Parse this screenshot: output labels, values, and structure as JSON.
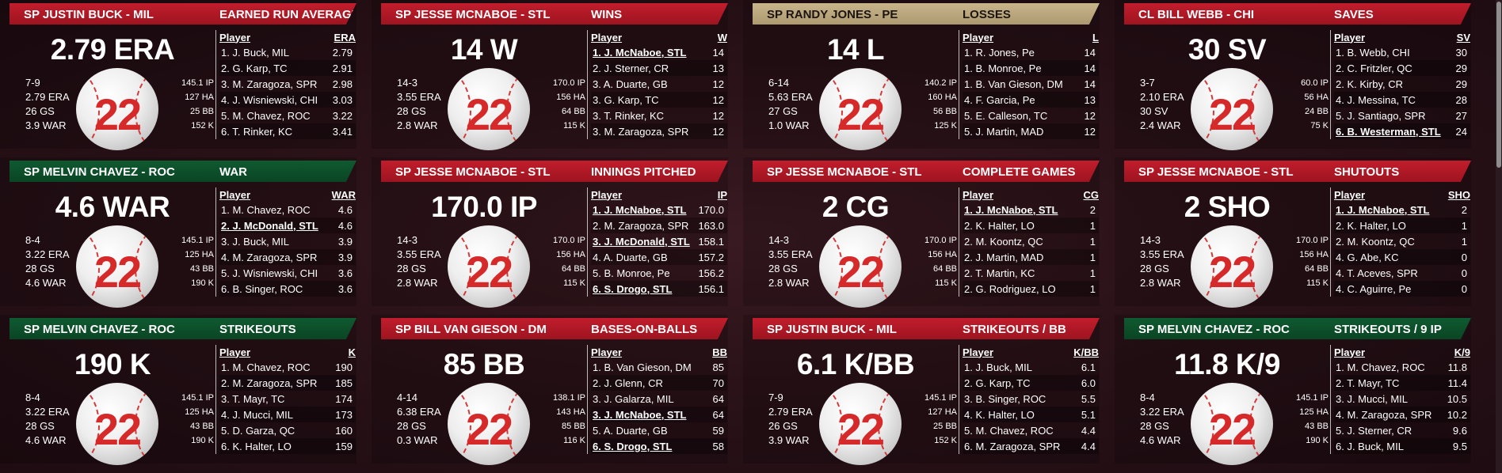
{
  "panels": [
    {
      "player": "SP JUSTIN BUCK - MIL",
      "stat": "EARNED RUN AVERAGE",
      "color": "red",
      "headline": "2.79 ERA",
      "left": [
        "7-9",
        "2.79 ERA",
        "26 GS",
        "3.9 WAR"
      ],
      "right": [
        "145.1 IP",
        "127 HA",
        "25 BB",
        "152 K"
      ],
      "col": "ERA",
      "rows": [
        [
          "1. J. Buck, MIL",
          "2.79"
        ],
        [
          "2. G. Karp, TC",
          "2.91"
        ],
        [
          "3. M. Zaragoza, SPR",
          "2.98"
        ],
        [
          "4. J. Wisniewski, CHI",
          "3.03"
        ],
        [
          "5. M. Chavez, ROC",
          "3.22"
        ],
        [
          "6. T. Rinker, KC",
          "3.41"
        ]
      ],
      "hl": []
    },
    {
      "player": "SP JESSE MCNABOE - STL",
      "stat": "WINS",
      "color": "red",
      "headline": "14 W",
      "left": [
        "14-3",
        "3.55 ERA",
        "28 GS",
        "2.8 WAR"
      ],
      "right": [
        "170.0 IP",
        "156 HA",
        "64 BB",
        "115 K"
      ],
      "col": "W",
      "rows": [
        [
          "1. J. McNaboe, STL",
          "14"
        ],
        [
          "2. J. Sterner, CR",
          "13"
        ],
        [
          "3. A. Duarte, GB",
          "12"
        ],
        [
          "3. G. Karp, TC",
          "12"
        ],
        [
          "3. T. Rinker, KC",
          "12"
        ],
        [
          "3. M. Zaragoza, SPR",
          "12"
        ]
      ],
      "hl": [
        0
      ]
    },
    {
      "player": "SP RANDY JONES - PE",
      "stat": "LOSSES",
      "color": "tan",
      "headline": "14 L",
      "left": [
        "6-14",
        "5.63 ERA",
        "27 GS",
        "1.0 WAR"
      ],
      "right": [
        "140.2 IP",
        "160 HA",
        "56 BB",
        "125 K"
      ],
      "col": "L",
      "rows": [
        [
          "1. R. Jones, Pe",
          "14"
        ],
        [
          "1. B. Monroe, Pe",
          "14"
        ],
        [
          "1. B. Van Gieson, DM",
          "14"
        ],
        [
          "4. F. Garcia, Pe",
          "13"
        ],
        [
          "5. E. Calleson, TC",
          "12"
        ],
        [
          "5. J. Martin, MAD",
          "12"
        ]
      ],
      "hl": []
    },
    {
      "player": "CL BILL WEBB - CHI",
      "stat": "SAVES",
      "color": "red",
      "headline": "30 SV",
      "left": [
        "3-7",
        "2.10 ERA",
        "30 SV",
        "2.4 WAR"
      ],
      "right": [
        "60.0 IP",
        "56 HA",
        "24 BB",
        "75 K"
      ],
      "col": "SV",
      "rows": [
        [
          "1. B. Webb, CHI",
          "30"
        ],
        [
          "2. C. Fritzler, QC",
          "29"
        ],
        [
          "2. K. Kirby, CR",
          "29"
        ],
        [
          "4. J. Messina, TC",
          "28"
        ],
        [
          "5. J. Santiago, SPR",
          "27"
        ],
        [
          "6. B. Westerman, STL",
          "24"
        ]
      ],
      "hl": [
        5
      ]
    },
    {
      "player": "SP MELVIN CHAVEZ - ROC",
      "stat": "WAR",
      "color": "green",
      "headline": "4.6 WAR",
      "left": [
        "8-4",
        "3.22 ERA",
        "28 GS",
        "4.6 WAR"
      ],
      "right": [
        "145.1 IP",
        "125 HA",
        "43 BB",
        "190 K"
      ],
      "col": "WAR",
      "rows": [
        [
          "1. M. Chavez, ROC",
          "4.6"
        ],
        [
          "2. J. McDonald, STL",
          "4.6"
        ],
        [
          "3. J. Buck, MIL",
          "3.9"
        ],
        [
          "4. M. Zaragoza, SPR",
          "3.9"
        ],
        [
          "5. J. Wisniewski, CHI",
          "3.6"
        ],
        [
          "6. B. Singer, ROC",
          "3.6"
        ]
      ],
      "hl": [
        1
      ]
    },
    {
      "player": "SP JESSE MCNABOE - STL",
      "stat": "INNINGS PITCHED",
      "color": "red",
      "headline": "170.0 IP",
      "left": [
        "14-3",
        "3.55 ERA",
        "28 GS",
        "2.8 WAR"
      ],
      "right": [
        "170.0 IP",
        "156 HA",
        "64 BB",
        "115 K"
      ],
      "col": "IP",
      "rows": [
        [
          "1. J. McNaboe, STL",
          "170.0"
        ],
        [
          "2. M. Zaragoza, SPR",
          "163.0"
        ],
        [
          "3. J. McDonald, STL",
          "158.1"
        ],
        [
          "4. A. Duarte, GB",
          "157.2"
        ],
        [
          "5. B. Monroe, Pe",
          "156.2"
        ],
        [
          "6. S. Drogo, STL",
          "156.1"
        ]
      ],
      "hl": [
        0,
        2,
        5
      ]
    },
    {
      "player": "SP JESSE MCNABOE - STL",
      "stat": "COMPLETE GAMES",
      "color": "red",
      "headline": "2 CG",
      "left": [
        "14-3",
        "3.55 ERA",
        "28 GS",
        "2.8 WAR"
      ],
      "right": [
        "170.0 IP",
        "156 HA",
        "64 BB",
        "115 K"
      ],
      "col": "CG",
      "rows": [
        [
          "1. J. McNaboe, STL",
          "2"
        ],
        [
          "2. K. Halter, LO",
          "1"
        ],
        [
          "2. M. Koontz, QC",
          "1"
        ],
        [
          "2. J. Martin, MAD",
          "1"
        ],
        [
          "2. T. Martin, KC",
          "1"
        ],
        [
          "2. G. Rodriguez, LO",
          "1"
        ]
      ],
      "hl": [
        0
      ]
    },
    {
      "player": "SP JESSE MCNABOE - STL",
      "stat": "SHUTOUTS",
      "color": "red",
      "headline": "2 SHO",
      "left": [
        "14-3",
        "3.55 ERA",
        "28 GS",
        "2.8 WAR"
      ],
      "right": [
        "170.0 IP",
        "156 HA",
        "64 BB",
        "115 K"
      ],
      "col": "SHO",
      "rows": [
        [
          "1. J. McNaboe, STL",
          "2"
        ],
        [
          "2. K. Halter, LO",
          "1"
        ],
        [
          "2. M. Koontz, QC",
          "1"
        ],
        [
          "4. G. Abe, KC",
          "0"
        ],
        [
          "4. T. Aceves, SPR",
          "0"
        ],
        [
          "4. C. Aguirre, Pe",
          "0"
        ]
      ],
      "hl": [
        0
      ]
    },
    {
      "player": "SP MELVIN CHAVEZ - ROC",
      "stat": "STRIKEOUTS",
      "color": "green",
      "headline": "190 K",
      "left": [
        "8-4",
        "3.22 ERA",
        "28 GS",
        "4.6 WAR"
      ],
      "right": [
        "145.1 IP",
        "125 HA",
        "43 BB",
        "190 K"
      ],
      "col": "K",
      "rows": [
        [
          "1. M. Chavez, ROC",
          "190"
        ],
        [
          "2. M. Zaragoza, SPR",
          "185"
        ],
        [
          "3. T. Mayr, TC",
          "174"
        ],
        [
          "4. J. Mucci, MIL",
          "173"
        ],
        [
          "5. D. Garza, QC",
          "160"
        ],
        [
          "6. K. Halter, LO",
          "159"
        ]
      ],
      "hl": []
    },
    {
      "player": "SP BILL VAN GIESON - DM",
      "stat": "BASES-ON-BALLS",
      "color": "red",
      "headline": "85 BB",
      "left": [
        "4-14",
        "6.38 ERA",
        "28 GS",
        "0.3 WAR"
      ],
      "right": [
        "138.1 IP",
        "143 HA",
        "85 BB",
        "116 K"
      ],
      "col": "BB",
      "rows": [
        [
          "1. B. Van Gieson, DM",
          "85"
        ],
        [
          "2. J. Glenn, CR",
          "70"
        ],
        [
          "3. J. Galarza, MIL",
          "64"
        ],
        [
          "3. J. McNaboe, STL",
          "64"
        ],
        [
          "5. A. Duarte, GB",
          "59"
        ],
        [
          "6. S. Drogo, STL",
          "58"
        ]
      ],
      "hl": [
        3,
        5
      ]
    },
    {
      "player": "SP JUSTIN BUCK - MIL",
      "stat": "STRIKEOUTS / BB",
      "color": "red",
      "headline": "6.1 K/BB",
      "left": [
        "7-9",
        "2.79 ERA",
        "26 GS",
        "3.9 WAR"
      ],
      "right": [
        "145.1 IP",
        "127 HA",
        "25 BB",
        "152 K"
      ],
      "col": "K/BB",
      "rows": [
        [
          "1. J. Buck, MIL",
          "6.1"
        ],
        [
          "2. G. Karp, TC",
          "6.0"
        ],
        [
          "3. B. Singer, ROC",
          "5.5"
        ],
        [
          "4. K. Halter, LO",
          "5.1"
        ],
        [
          "5. M. Chavez, ROC",
          "4.4"
        ],
        [
          "6. M. Zaragoza, SPR",
          "4.4"
        ]
      ],
      "hl": []
    },
    {
      "player": "SP MELVIN CHAVEZ - ROC",
      "stat": "STRIKEOUTS / 9 IP",
      "color": "green",
      "headline": "11.8 K/9",
      "left": [
        "8-4",
        "3.22 ERA",
        "28 GS",
        "4.6 WAR"
      ],
      "right": [
        "145.1 IP",
        "125 HA",
        "43 BB",
        "190 K"
      ],
      "col": "K/9",
      "rows": [
        [
          "1. M. Chavez, ROC",
          "11.8"
        ],
        [
          "2. T. Mayr, TC",
          "11.4"
        ],
        [
          "3. J. Mucci, MIL",
          "10.5"
        ],
        [
          "4. M. Zaragoza, SPR",
          "10.2"
        ],
        [
          "5. J. Sterner, CR",
          "9.6"
        ],
        [
          "6. J. Buck, MIL",
          "9.5"
        ]
      ],
      "hl": []
    }
  ],
  "labels": {
    "player_col": "Player",
    "jersey": "22"
  }
}
